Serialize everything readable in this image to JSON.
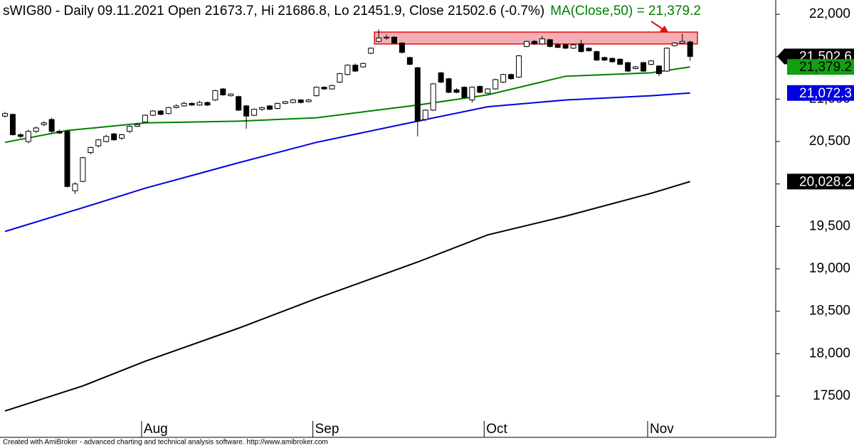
{
  "chart_data": {
    "type": "candlestick",
    "title": "sWIG80 - Daily 09.11.2021 Open 21673.7, Hi 21686.8, Lo 21451.9, Close 21502.6 (-0.7%)",
    "ma_label": "MA(Close,50) = 21,379.2",
    "categories": [
      null,
      null,
      null,
      null,
      null,
      null,
      null,
      null,
      null,
      null,
      null,
      null,
      null,
      null,
      null,
      null,
      null,
      null,
      "Aug",
      null,
      null,
      null,
      null,
      null,
      null,
      null,
      null,
      null,
      null,
      null,
      null,
      null,
      null,
      null,
      null,
      null,
      null,
      null,
      null,
      null,
      "Sep",
      null,
      null,
      null,
      null,
      null,
      null,
      null,
      null,
      null,
      null,
      null,
      null,
      null,
      null,
      null,
      null,
      null,
      null,
      null,
      null,
      null,
      "Oct",
      null,
      null,
      null,
      null,
      null,
      null,
      null,
      null,
      null,
      null,
      null,
      null,
      null,
      null,
      null,
      null,
      null,
      null,
      null,
      null,
      "Nov",
      null,
      null,
      null,
      null,
      null
    ],
    "open": [
      20800,
      20820,
      20580,
      20500,
      20620,
      20700,
      20760,
      20620,
      20620,
      19920,
      20030,
      20370,
      20450,
      20500,
      20590,
      20540,
      20620,
      20680,
      20730,
      20810,
      20860,
      20830,
      20900,
      20920,
      20950,
      20930,
      20960,
      20990,
      21120,
      21040,
      21030,
      20920,
      20810,
      20880,
      20920,
      20890,
      20950,
      20960,
      20990,
      20970,
      21040,
      21140,
      21120,
      21200,
      21290,
      21400,
      21380,
      21540,
      21680,
      21720,
      21730,
      21660,
      21490,
      21370,
      20760,
      20870,
      21310,
      21240,
      21110,
      21140,
      20990,
      21150,
      21070,
      21120,
      21200,
      21290,
      21260,
      21620,
      21680,
      21650,
      21700,
      21640,
      21640,
      21600,
      21650,
      21600,
      21560,
      21490,
      21480,
      21470,
      21430,
      21360,
      21430,
      21410,
      21390,
      21330,
      21630,
      21660,
      21673.7
    ],
    "high": [
      20850,
      20830,
      20600,
      20640,
      20680,
      20740,
      20780,
      20640,
      20640,
      20020,
      20320,
      20440,
      20530,
      20580,
      20600,
      20590,
      20690,
      20720,
      20820,
      20870,
      20870,
      20910,
      20940,
      20970,
      20960,
      20980,
      20970,
      21110,
      21130,
      21070,
      21040,
      20930,
      20890,
      20910,
      20930,
      20960,
      20980,
      21000,
      21000,
      21000,
      21150,
      21150,
      21170,
      21310,
      21410,
      21420,
      21430,
      21610,
      21820,
      21760,
      21740,
      21670,
      21500,
      21380,
      20880,
      21190,
      21320,
      21250,
      21130,
      21150,
      21150,
      21160,
      21130,
      21240,
      21300,
      21300,
      21520,
      21690,
      21700,
      21740,
      21710,
      21660,
      21650,
      21650,
      21700,
      21610,
      21570,
      21500,
      21490,
      21480,
      21440,
      21390,
      21440,
      21460,
      21400,
      21610,
      21670,
      21770,
      21686.8
    ],
    "low": [
      20780,
      20570,
      20540,
      20480,
      20600,
      20680,
      20600,
      20590,
      19960,
      19880,
      20020,
      20350,
      20430,
      20490,
      20510,
      20520,
      20600,
      20670,
      20720,
      20800,
      20810,
      20820,
      20890,
      20910,
      20920,
      20920,
      20920,
      20980,
      21040,
      21030,
      20860,
      20650,
      20800,
      20860,
      20870,
      20880,
      20940,
      20950,
      20950,
      20960,
      21030,
      21110,
      21110,
      21190,
      21280,
      21320,
      21370,
      21530,
      21670,
      21700,
      21650,
      21540,
      21400,
      20560,
      20740,
      20860,
      21190,
      21070,
      21070,
      21010,
      20960,
      21070,
      21060,
      21110,
      21190,
      21230,
      21250,
      21610,
      21640,
      21640,
      21610,
      21600,
      21590,
      21590,
      21550,
      21560,
      21450,
      21450,
      21430,
      21400,
      21320,
      21350,
      21320,
      21400,
      21270,
      21320,
      21620,
      21650,
      21451.9
    ],
    "close": [
      20830,
      20580,
      20560,
      20620,
      20660,
      20720,
      20620,
      20600,
      19970,
      20000,
      20310,
      20430,
      20520,
      20560,
      20520,
      20580,
      20680,
      20700,
      20810,
      20860,
      20820,
      20900,
      20920,
      20950,
      20930,
      20960,
      20930,
      21100,
      21050,
      21060,
      20870,
      20800,
      20880,
      20900,
      20880,
      20950,
      20970,
      20990,
      20960,
      20990,
      21140,
      21120,
      21160,
      21300,
      21400,
      21330,
      21420,
      21600,
      21720,
      21730,
      21660,
      21550,
      21410,
      20740,
      20870,
      21180,
      21200,
      21080,
      21080,
      21020,
      21140,
      21080,
      21120,
      21230,
      21290,
      21240,
      21510,
      21680,
      21650,
      21710,
      21620,
      21610,
      21600,
      21640,
      21560,
      21570,
      21460,
      21460,
      21440,
      21410,
      21330,
      21380,
      21330,
      21450,
      21300,
      21600,
      21660,
      21680,
      21502.6
    ],
    "close_label": "21,502.6",
    "series": [
      {
        "color": "#008000",
        "value_label": "21,379.2",
        "x": [
          0,
          8,
          18,
          30,
          40,
          53,
          62,
          72,
          83,
          88
        ],
        "values": [
          20490,
          20630,
          20720,
          20740,
          20780,
          20930,
          21050,
          21270,
          21310,
          21379.2
        ]
      },
      {
        "color": "#0000e0",
        "value_label": "21,072.3",
        "x": [
          0,
          10,
          18,
          30,
          40,
          53,
          62,
          72,
          83,
          88
        ],
        "values": [
          19440,
          19720,
          19950,
          20250,
          20490,
          20740,
          20910,
          20990,
          21040,
          21072.3
        ]
      },
      {
        "color": "#000000",
        "value_label": "20,028.2",
        "x": [
          0,
          10,
          18,
          30,
          40,
          53,
          62,
          72,
          83,
          88
        ],
        "values": [
          17325,
          17620,
          17910,
          18300,
          18650,
          19080,
          19400,
          19620,
          19890,
          20028.2
        ]
      }
    ],
    "zone": {
      "from": 48,
      "low": 21650,
      "high": 21790
    },
    "ylim": [
      17014,
      22168
    ],
    "yticks": [
      17500,
      {
        "value": 18000,
        "label": "18,000"
      },
      {
        "value": 18500,
        "label": "18,500"
      },
      {
        "value": 19000,
        "label": "19,000"
      },
      {
        "value": 19500,
        "label": "19,500"
      },
      {
        "value": 20000,
        "label": "20,000"
      },
      {
        "value": 20500,
        "label": "20,500"
      },
      {
        "value": 21000,
        "label": "21,000"
      },
      {
        "value": 21500,
        "label": "21,500"
      },
      {
        "value": 22000,
        "label": "22,000"
      }
    ]
  },
  "footer": "Created with AmiBroker - advanced charting and technical analysis software. http://www.amibroker.com"
}
